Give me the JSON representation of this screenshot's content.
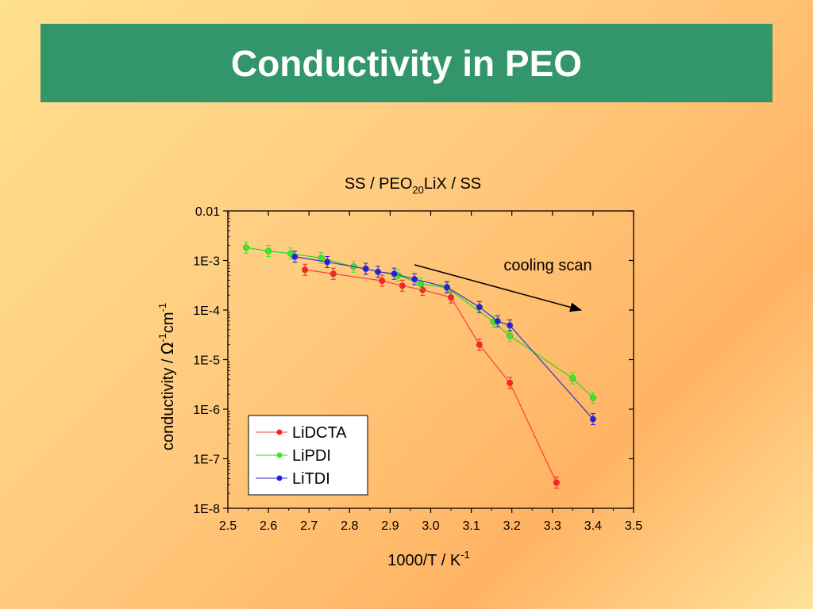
{
  "slide": {
    "title": "Conductivity in PEO"
  },
  "colors": {
    "title_bar": "#33966b",
    "title_text": "#ffffff"
  },
  "chart_data": {
    "type": "scatter",
    "title": {
      "main": "SS / PEO",
      "sub": "20",
      "rest": "LiX / SS"
    },
    "xlabel": {
      "main": "1000/T / K",
      "sup": "-1"
    },
    "ylabel": {
      "p1": "conductivity / ",
      "omega": "Ω",
      "sup1": "-1",
      "p2": "cm",
      "sup2": "-1"
    },
    "xlim": [
      2.5,
      3.5
    ],
    "ylim": [
      1e-08,
      0.01
    ],
    "yscale": "log",
    "x_ticks": [
      "2.5",
      "2.6",
      "2.7",
      "2.8",
      "2.9",
      "3.0",
      "3.1",
      "3.2",
      "3.3",
      "3.4",
      "3.5"
    ],
    "y_ticks": [
      {
        "value": 0.01,
        "label": "0.01"
      },
      {
        "value": 0.001,
        "label": "1E-3"
      },
      {
        "value": 0.0001,
        "label": "1E-4"
      },
      {
        "value": 1e-05,
        "label": "1E-5"
      },
      {
        "value": 1e-06,
        "label": "1E-6"
      },
      {
        "value": 1e-07,
        "label": "1E-7"
      },
      {
        "value": 1e-08,
        "label": "1E-8"
      }
    ],
    "grid": false,
    "legend_position": "bottom-left",
    "annotation": {
      "text": "cooling scan",
      "arrow_from": [
        2.96,
        0.00082
      ],
      "arrow_to": [
        3.37,
        0.0001
      ]
    },
    "series": [
      {
        "name": "LiDCTA",
        "color": "#ff2020",
        "line_color": "#ff3a3a",
        "points": [
          [
            2.69,
            0.00065
          ],
          [
            2.76,
            0.00054
          ],
          [
            2.88,
            0.00039
          ],
          [
            2.93,
            0.00031
          ],
          [
            2.98,
            0.000255
          ],
          [
            3.05,
            0.00018
          ],
          [
            3.12,
            2e-05
          ],
          [
            3.195,
            3.4e-06
          ],
          [
            3.31,
            3.3e-08
          ]
        ]
      },
      {
        "name": "LiPDI",
        "color": "#33ee22",
        "line_color": "#22dd22",
        "points": [
          [
            2.545,
            0.00182
          ],
          [
            2.6,
            0.00155
          ],
          [
            2.655,
            0.00138
          ],
          [
            2.73,
            0.00112
          ],
          [
            2.81,
            0.00075
          ],
          [
            2.92,
            0.0005
          ],
          [
            2.975,
            0.00034
          ],
          [
            3.04,
            0.00028
          ],
          [
            3.155,
            5.8e-05
          ],
          [
            3.195,
            3e-05
          ],
          [
            3.35,
            4.2e-06
          ],
          [
            3.4,
            1.7e-06
          ]
        ]
      },
      {
        "name": "LiTDI",
        "color": "#2222dd",
        "line_color": "#3333cc",
        "points": [
          [
            2.665,
            0.00119
          ],
          [
            2.745,
            0.00093
          ],
          [
            2.84,
            0.00068
          ],
          [
            2.87,
            0.00059
          ],
          [
            2.91,
            0.00054
          ],
          [
            2.96,
            0.00042
          ],
          [
            3.04,
            0.00029
          ],
          [
            3.12,
            0.000115
          ],
          [
            3.165,
            5.95e-05
          ],
          [
            3.195,
            4.9e-05
          ],
          [
            3.4,
            6.3e-07
          ]
        ]
      }
    ]
  }
}
